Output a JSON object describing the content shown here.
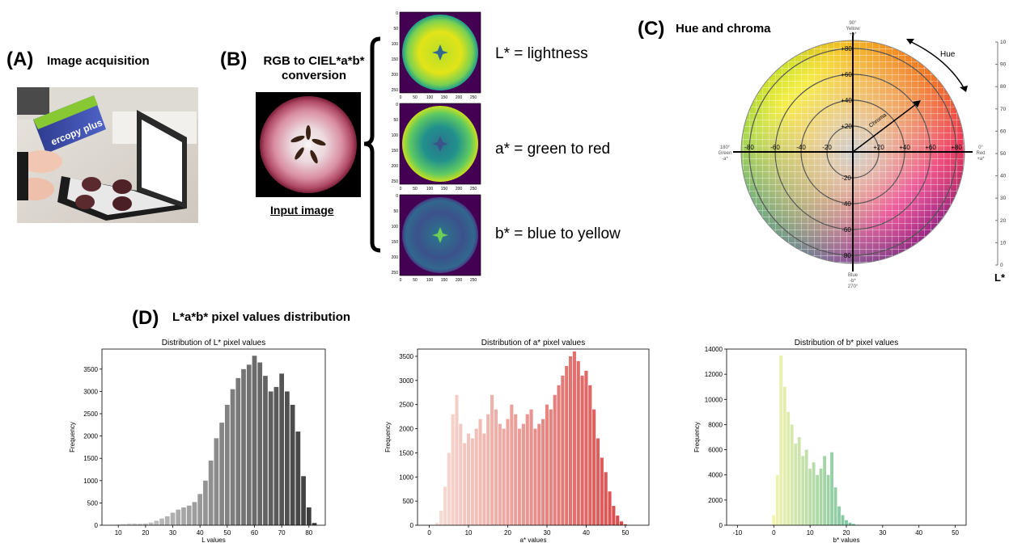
{
  "panelA": {
    "letter": "(A)",
    "title": "Image acquisition",
    "scanner_text": "ercopy plus"
  },
  "panelB": {
    "letter": "(B)",
    "title_line1": "RGB to CIEL*a*b*",
    "title_line2": "conversion",
    "input_label": "Input image",
    "channels": [
      {
        "label": "L* = lightness"
      },
      {
        "label": "a* = green to red"
      },
      {
        "label": "b* = blue to yellow"
      }
    ],
    "y_ticks": [
      "0",
      "50",
      "100",
      "150",
      "200",
      "250"
    ],
    "x_ticks": [
      "0",
      "50",
      "100",
      "150",
      "200",
      "250"
    ]
  },
  "panelC": {
    "letter": "(C)",
    "title": "Hue and chroma",
    "top_label": [
      "90°",
      "Yellow",
      "+b*"
    ],
    "bottom_label": [
      "Blue",
      "-b*",
      "270°"
    ],
    "left_label": [
      "180°",
      "Green",
      "-a*"
    ],
    "right_label": [
      "0°",
      "Red",
      "+a*"
    ],
    "hue_label": "Hue",
    "chroma_label": "Chroma",
    "axis_ticks_pos": [
      "+20",
      "+40",
      "+60",
      "+80"
    ],
    "axis_ticks_neg": [
      "-20",
      "-40",
      "-60",
      "-80"
    ],
    "l_scale_ticks": [
      "0",
      "10",
      "20",
      "30",
      "40",
      "50",
      "60",
      "70",
      "80",
      "90",
      "10"
    ],
    "l_scale_label": "L*"
  },
  "panelD": {
    "letter": "(D)",
    "title": "L*a*b* pixel values distribution"
  },
  "chart_data": [
    {
      "type": "bar",
      "title": "Distribution of L* pixel values",
      "xlabel": "L values",
      "ylabel": "Frequency",
      "xlim": [
        4,
        86
      ],
      "ylim": [
        0,
        3950
      ],
      "x_ticks": [
        10,
        20,
        30,
        40,
        50,
        60,
        70,
        80
      ],
      "y_ticks": [
        0,
        500,
        1000,
        1500,
        2000,
        2500,
        3000,
        3500
      ],
      "colors": [
        "#e0e0e0",
        "#3a3a3a"
      ],
      "x": [
        8,
        10,
        12,
        14,
        16,
        18,
        20,
        22,
        24,
        26,
        28,
        30,
        32,
        34,
        36,
        38,
        40,
        42,
        44,
        46,
        48,
        50,
        52,
        54,
        56,
        58,
        60,
        62,
        64,
        66,
        68,
        70,
        72,
        74,
        76,
        78,
        80,
        82
      ],
      "values": [
        0,
        20,
        30,
        40,
        40,
        35,
        40,
        60,
        100,
        150,
        200,
        280,
        350,
        400,
        440,
        520,
        700,
        1000,
        1450,
        1950,
        2300,
        2700,
        3050,
        3300,
        3500,
        3600,
        3800,
        3650,
        3350,
        3000,
        3100,
        3400,
        3000,
        2700,
        2100,
        1100,
        400,
        50
      ]
    },
    {
      "type": "bar",
      "title": "Distribution of a* pixel values",
      "xlabel": "a* values",
      "ylabel": "Frequency",
      "xlim": [
        -3,
        56
      ],
      "ylim": [
        0,
        3650
      ],
      "x_ticks": [
        0,
        10,
        20,
        30,
        40,
        50
      ],
      "y_ticks": [
        0,
        500,
        1000,
        1500,
        2000,
        2500,
        3000,
        3500
      ],
      "colors": [
        "#f7ddd5",
        "#d94848"
      ],
      "x": [
        2,
        3,
        4,
        5,
        6,
        7,
        8,
        9,
        10,
        11,
        12,
        13,
        14,
        15,
        16,
        17,
        18,
        19,
        20,
        21,
        22,
        23,
        24,
        25,
        26,
        27,
        28,
        29,
        30,
        31,
        32,
        33,
        34,
        35,
        36,
        37,
        38,
        39,
        40,
        41,
        42,
        43,
        44,
        45,
        46,
        47,
        48,
        49,
        50
      ],
      "values": [
        50,
        300,
        800,
        1500,
        2300,
        2700,
        2100,
        1700,
        1900,
        1800,
        2000,
        2200,
        1900,
        2300,
        2700,
        2400,
        2100,
        2000,
        2200,
        2500,
        2300,
        2000,
        2100,
        2300,
        2400,
        2000,
        2100,
        2200,
        2500,
        2400,
        2700,
        2900,
        3100,
        3300,
        3500,
        3600,
        3400,
        3100,
        3200,
        2900,
        2400,
        1800,
        1400,
        1100,
        700,
        400,
        200,
        80,
        20
      ]
    },
    {
      "type": "bar",
      "title": "Distribution of b* pixel values",
      "xlabel": "b* values",
      "ylabel": "Frequency",
      "xlim": [
        -13,
        53
      ],
      "ylim": [
        0,
        14000
      ],
      "x_ticks": [
        -10,
        0,
        10,
        20,
        30,
        40,
        50
      ],
      "y_ticks": [
        0,
        2000,
        4000,
        6000,
        8000,
        10000,
        12000,
        14000
      ],
      "colors": [
        "#f4f4b0",
        "#6fbfa0"
      ],
      "x": [
        0,
        1,
        2,
        3,
        4,
        5,
        6,
        7,
        8,
        9,
        10,
        11,
        12,
        13,
        14,
        15,
        16,
        17,
        18,
        19,
        20,
        21,
        22,
        23
      ],
      "values": [
        800,
        4000,
        13500,
        11000,
        9000,
        8000,
        6500,
        7000,
        5500,
        6000,
        4500,
        5000,
        4000,
        4500,
        5500,
        4000,
        5800,
        3000,
        1500,
        800,
        400,
        200,
        100,
        30
      ]
    }
  ]
}
